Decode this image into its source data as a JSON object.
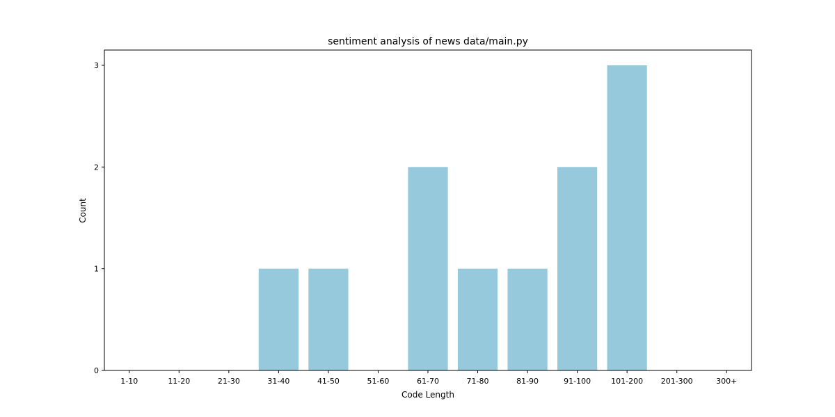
{
  "chart_data": {
    "type": "bar",
    "title": "sentiment analysis of news data/main.py",
    "xlabel": "Code Length",
    "ylabel": "Count",
    "categories": [
      "1-10",
      "11-20",
      "21-30",
      "31-40",
      "41-50",
      "51-60",
      "61-70",
      "71-80",
      "81-90",
      "91-100",
      "101-200",
      "201-300",
      "300+"
    ],
    "values": [
      0,
      0,
      0,
      1,
      1,
      0,
      2,
      1,
      1,
      2,
      3,
      0,
      0
    ],
    "ylim": [
      0,
      3.15
    ],
    "yticks": [
      0,
      1,
      2,
      3
    ],
    "grid": false,
    "bar_color": "#96c9dc"
  }
}
